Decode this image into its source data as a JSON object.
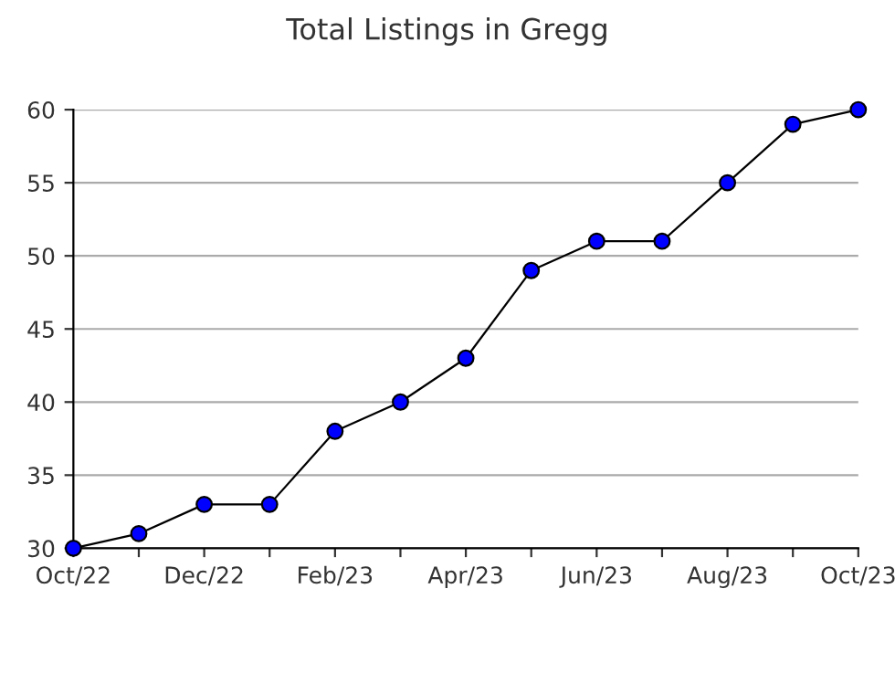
{
  "chart_data": {
    "type": "line",
    "title": "Total Listings in Gregg",
    "categories": [
      "Oct/22",
      null,
      "Dec/22",
      null,
      "Feb/23",
      null,
      "Apr/23",
      null,
      "Jun/23",
      null,
      "Aug/23",
      null,
      "Oct/23"
    ],
    "series": [
      {
        "color": "#0000ff",
        "values": [
          30,
          31,
          33,
          33,
          38,
          40,
          43,
          49,
          51,
          51,
          55,
          59,
          60
        ]
      }
    ],
    "ylim": [
      30,
      60
    ],
    "yticks": [
      30,
      35,
      40,
      45,
      50,
      55,
      60
    ],
    "grid": "y",
    "marker": "circle",
    "line_style": "solid"
  }
}
